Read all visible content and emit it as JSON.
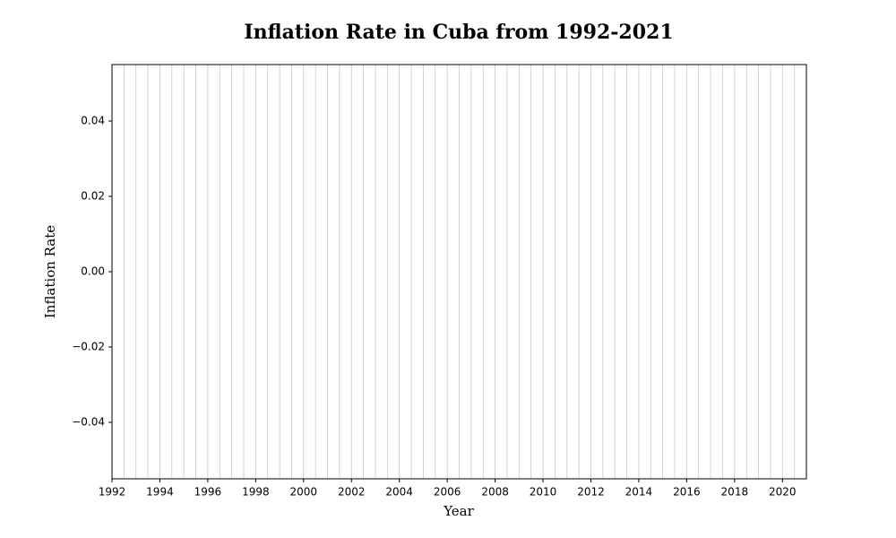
{
  "chart_data": {
    "type": "line",
    "title": "Inflation Rate in Cuba from 1992-2021",
    "xlabel": "Year",
    "ylabel": "Inflation Rate",
    "x": [],
    "series": [],
    "xlim": [
      1992,
      2021
    ],
    "xticks": [
      1992,
      1994,
      1996,
      1998,
      2000,
      2002,
      2004,
      2006,
      2008,
      2010,
      2012,
      2014,
      2016,
      2018,
      2020
    ],
    "xgrid": [
      1992.5,
      1993,
      1993.5,
      1994,
      1994.5,
      1995,
      1995.5,
      1996,
      1996.5,
      1997,
      1997.5,
      1998,
      1998.5,
      1999,
      1999.5,
      2000,
      2000.5,
      2001,
      2001.5,
      2002,
      2002.5,
      2003,
      2003.5,
      2004,
      2004.5,
      2005,
      2005.5,
      2006,
      2006.5,
      2007,
      2007.5,
      2008,
      2008.5,
      2009,
      2009.5,
      2010,
      2010.5,
      2011,
      2011.5,
      2012,
      2012.5,
      2013,
      2013.5,
      2014,
      2014.5,
      2015,
      2015.5,
      2016,
      2016.5,
      2017,
      2017.5,
      2018,
      2018.5,
      2019,
      2019.5,
      2020,
      2020.5
    ],
    "ylim": [
      -0.055,
      0.055
    ],
    "yticks": [
      {
        "value": -0.04,
        "label": "−0.04"
      },
      {
        "value": -0.02,
        "label": "−0.02"
      },
      {
        "value": 0,
        "label": "0.00"
      },
      0.02,
      0.04
    ],
    "grid": true
  }
}
